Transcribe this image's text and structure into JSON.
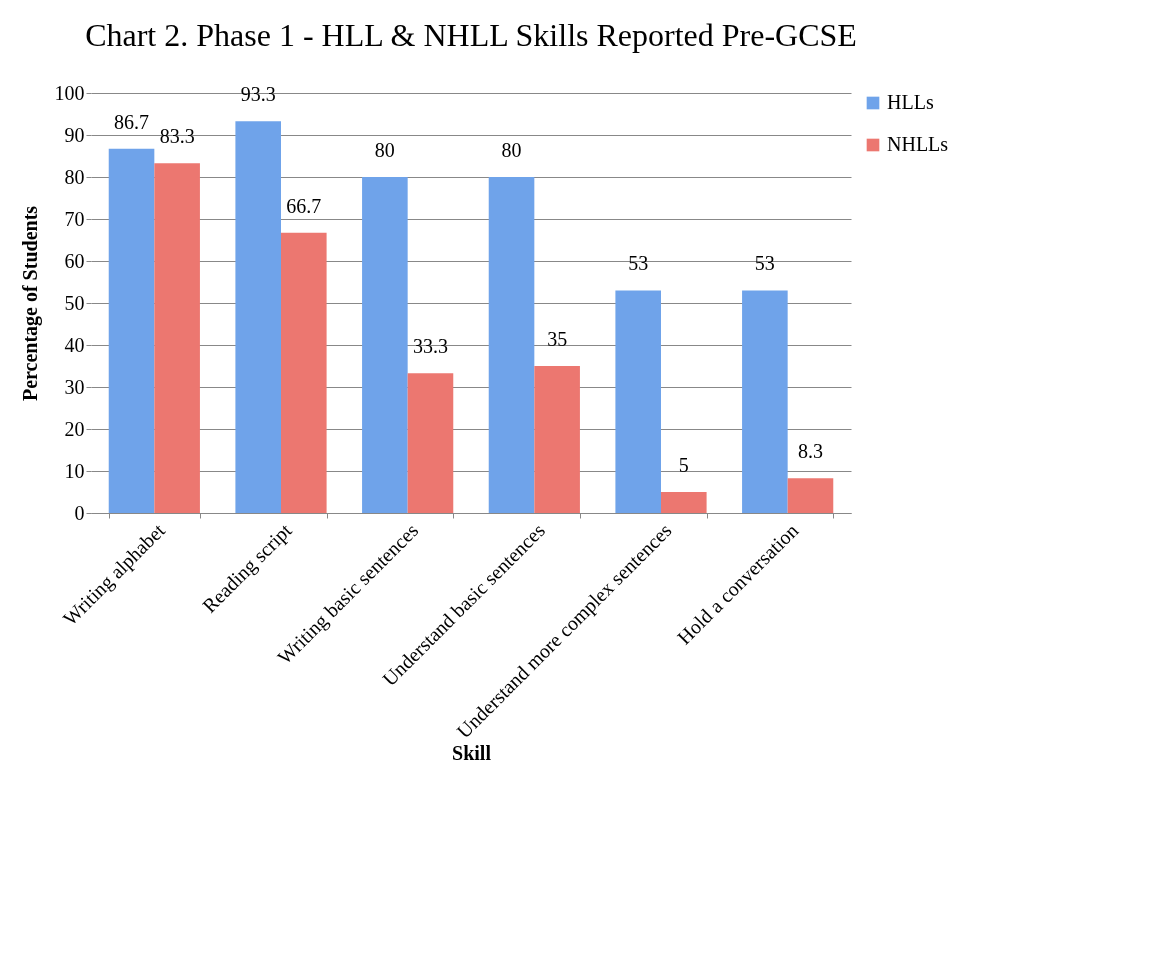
{
  "chart_data": {
    "type": "bar",
    "title": "Chart 2. Phase 1 - HLL & NHLL Skills Reported Pre-GCSE",
    "xlabel": "Skill",
    "ylabel": "Percentage of Students",
    "categories": [
      "Writing alphabet",
      "Reading script",
      "Writing basic sentences",
      "Understand basic sentences",
      "Understand more complex sentences",
      "Hold a conversation"
    ],
    "series": [
      {
        "name": "HLLs",
        "color": "#6fa3ea",
        "values": [
          86.7,
          93.3,
          80,
          80,
          53,
          53
        ]
      },
      {
        "name": "NHLLs",
        "color": "#ec7770",
        "values": [
          83.3,
          66.7,
          33.3,
          35,
          5,
          8.3
        ]
      }
    ],
    "ylim": [
      0,
      100
    ],
    "yticks": [
      0,
      10,
      20,
      30,
      40,
      50,
      60,
      70,
      80,
      90,
      100
    ],
    "grid": "y",
    "legend": "right",
    "data_labels": true
  }
}
